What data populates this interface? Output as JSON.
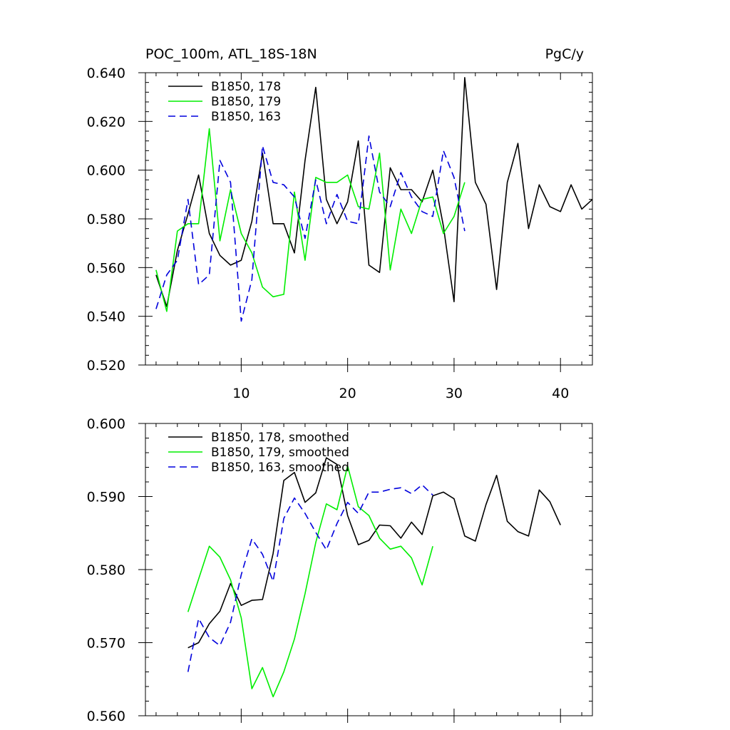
{
  "chart_data": [
    {
      "type": "line",
      "title_left": "POC_100m, ATL_18S-18N",
      "title_right": "PgC/y",
      "xlabel": "",
      "ylabel": "",
      "xlim": [
        1,
        43
      ],
      "ylim": [
        0.52,
        0.64
      ],
      "x_ticks": [
        10,
        20,
        30,
        40
      ],
      "x_tick_labels": [
        "10",
        "20",
        "30",
        "40"
      ],
      "y_ticks": [
        0.52,
        0.54,
        0.56,
        0.58,
        0.6,
        0.62,
        0.64
      ],
      "y_tick_labels": [
        "0.520",
        "0.540",
        "0.560",
        "0.580",
        "0.600",
        "0.620",
        "0.640"
      ],
      "legend_position": "top-left",
      "series": [
        {
          "name": "B1850, 178",
          "color": "#000000",
          "dash": "solid",
          "x_start": 2,
          "values": [
            0.557,
            0.544,
            0.567,
            0.582,
            0.598,
            0.574,
            0.565,
            0.561,
            0.563,
            0.579,
            0.607,
            0.578,
            0.578,
            0.566,
            0.604,
            0.634,
            0.588,
            0.578,
            0.587,
            0.612,
            0.561,
            0.558,
            0.601,
            0.592,
            0.592,
            0.587,
            0.6,
            0.577,
            0.546,
            0.638,
            0.595,
            0.586,
            0.551,
            0.595,
            0.611,
            0.576,
            0.594,
            0.585,
            0.583,
            0.594,
            0.584,
            0.588
          ]
        },
        {
          "name": "B1850, 179",
          "color": "#00ee00",
          "dash": "solid",
          "x_start": 2,
          "values": [
            0.559,
            0.542,
            0.575,
            0.578,
            0.578,
            0.617,
            0.571,
            0.592,
            0.574,
            0.566,
            0.552,
            0.548,
            0.549,
            0.591,
            0.563,
            0.597,
            0.595,
            0.595,
            0.598,
            0.585,
            0.584,
            0.607,
            0.559,
            0.584,
            0.574,
            0.588,
            0.589,
            0.574,
            0.581,
            0.595
          ]
        },
        {
          "name": "B1850, 163",
          "color": "#0000dd",
          "dash": "dashed",
          "x_start": 2,
          "values": [
            0.543,
            0.557,
            0.563,
            0.588,
            0.553,
            0.557,
            0.604,
            0.595,
            0.538,
            0.555,
            0.61,
            0.595,
            0.594,
            0.589,
            0.572,
            0.596,
            0.578,
            0.59,
            0.579,
            0.578,
            0.614,
            0.591,
            0.585,
            0.599,
            0.589,
            0.583,
            0.581,
            0.608,
            0.597,
            0.575
          ]
        }
      ]
    },
    {
      "type": "line",
      "xlabel": "",
      "ylabel": "",
      "xlim": [
        1,
        43
      ],
      "ylim": [
        0.56,
        0.6
      ],
      "x_ticks": [
        10,
        20,
        30,
        40
      ],
      "y_ticks": [
        0.56,
        0.57,
        0.58,
        0.59,
        0.6
      ],
      "y_tick_labels": [
        "0.560",
        "0.570",
        "0.580",
        "0.590",
        "0.600"
      ],
      "legend_position": "top-left",
      "series": [
        {
          "name": "B1850, 178, smoothed",
          "color": "#000000",
          "dash": "solid",
          "x_start": 5,
          "values": [
            0.5693,
            0.57,
            0.5726,
            0.5743,
            0.5781,
            0.5751,
            0.5758,
            0.5759,
            0.5822,
            0.5922,
            0.5933,
            0.5892,
            0.5905,
            0.5953,
            0.5944,
            0.5874,
            0.5834,
            0.584,
            0.5861,
            0.586,
            0.5843,
            0.5865,
            0.5848,
            0.5901,
            0.5906,
            0.5897,
            0.5846,
            0.5839,
            0.5889,
            0.5929,
            0.5866,
            0.5852,
            0.5846,
            0.5909,
            0.5893,
            0.5861
          ]
        },
        {
          "name": "B1850, 179, smoothed",
          "color": "#00ee00",
          "dash": "solid",
          "x_start": 5,
          "values": [
            0.5742,
            0.5787,
            0.5832,
            0.5817,
            0.5786,
            0.5734,
            0.5637,
            0.5666,
            0.5626,
            0.566,
            0.5705,
            0.5767,
            0.5837,
            0.589,
            0.5882,
            0.5942,
            0.5886,
            0.5874,
            0.5843,
            0.5828,
            0.5832,
            0.5816,
            0.5779,
            0.5832
          ]
        },
        {
          "name": "B1850, 163, smoothed",
          "color": "#0000dd",
          "dash": "dashed",
          "x_start": 5,
          "values": [
            0.566,
            0.5733,
            0.5707,
            0.5696,
            0.5728,
            0.5793,
            0.5842,
            0.5821,
            0.5784,
            0.587,
            0.5898,
            0.5877,
            0.5851,
            0.5827,
            0.5863,
            0.5892,
            0.5877,
            0.5906,
            0.5906,
            0.591,
            0.5912,
            0.5904,
            0.5916,
            0.5902
          ]
        }
      ]
    }
  ]
}
